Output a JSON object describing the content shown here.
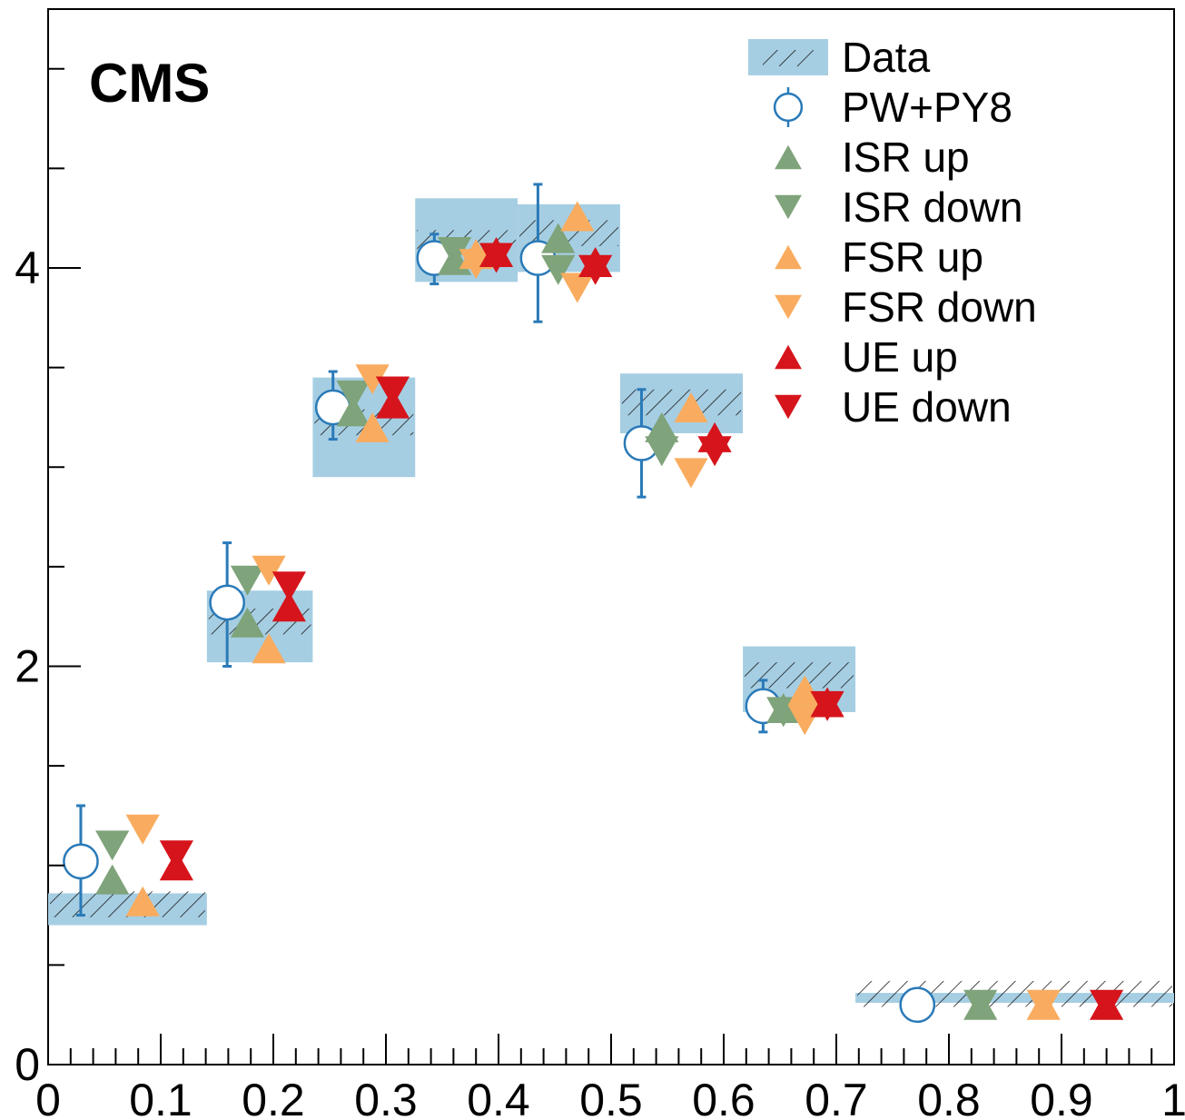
{
  "chart_data": {
    "type": "scatter",
    "title": "",
    "xlabel": "",
    "ylabel": "",
    "xlim": [
      0,
      1
    ],
    "ylim": [
      0,
      5.3
    ],
    "label": "CMS",
    "x_tick_labels": [
      "0",
      "0.1",
      "0.2",
      "0.3",
      "0.4",
      "0.5",
      "0.6",
      "0.7",
      "0.8",
      "0.9",
      "1"
    ],
    "y_tick_labels": [
      "0",
      "2",
      "4"
    ],
    "bins": [
      [
        0.0,
        0.141
      ],
      [
        0.141,
        0.235
      ],
      [
        0.235,
        0.326
      ],
      [
        0.326,
        0.417
      ],
      [
        0.417,
        0.508
      ],
      [
        0.508,
        0.617
      ],
      [
        0.617,
        0.717
      ],
      [
        0.717,
        1.0
      ]
    ],
    "data": {
      "name": "Data",
      "values": [
        0.78,
        2.2,
        3.2,
        4.1,
        4.15,
        3.3,
        1.93,
        0.33
      ],
      "band_low": [
        0.7,
        2.02,
        2.95,
        3.93,
        3.98,
        3.17,
        1.77,
        0.31
      ],
      "band_high": [
        0.86,
        2.38,
        3.45,
        4.35,
        4.32,
        3.47,
        2.1,
        0.36
      ]
    },
    "series": [
      {
        "name": "PW+PY8",
        "color": "#2a7ab8",
        "marker": "open-circle",
        "x": [
          0.029,
          0.159,
          0.253,
          0.343,
          0.435,
          0.527,
          0.635,
          0.772
        ],
        "values": [
          1.02,
          2.32,
          3.3,
          4.05,
          4.05,
          3.12,
          1.8,
          0.3
        ],
        "err_low": [
          0.27,
          0.32,
          0.16,
          0.13,
          0.32,
          0.27,
          0.13,
          0.02
        ],
        "err_high": [
          0.28,
          0.3,
          0.18,
          0.12,
          0.37,
          0.27,
          0.13,
          0.02
        ]
      },
      {
        "name": "ISR up",
        "color": "#7fa37a",
        "marker": "triangle-up",
        "x": [
          0.057,
          0.177,
          0.271,
          0.361,
          0.453,
          0.545,
          0.653,
          0.828
        ],
        "values": [
          0.93,
          2.22,
          3.28,
          4.04,
          4.15,
          3.2,
          1.79,
          0.3
        ]
      },
      {
        "name": "ISR down",
        "color": "#7fa37a",
        "marker": "triangle-down",
        "x": [
          0.057,
          0.177,
          0.271,
          0.361,
          0.453,
          0.545,
          0.653,
          0.828
        ],
        "values": [
          1.1,
          2.43,
          3.36,
          4.08,
          3.99,
          3.08,
          1.77,
          0.3
        ]
      },
      {
        "name": "FSR up",
        "color": "#f9ac5f",
        "marker": "triangle-up",
        "x": [
          0.084,
          0.196,
          0.288,
          0.38,
          0.47,
          0.571,
          0.672,
          0.884
        ],
        "values": [
          0.82,
          2.09,
          3.2,
          4.07,
          4.26,
          3.3,
          1.88,
          0.3
        ]
      },
      {
        "name": "FSR down",
        "color": "#f9ac5f",
        "marker": "triangle-down",
        "x": [
          0.084,
          0.196,
          0.288,
          0.38,
          0.47,
          0.571,
          0.672,
          0.884
        ],
        "values": [
          1.18,
          2.48,
          3.44,
          4.02,
          3.9,
          2.97,
          1.73,
          0.3
        ]
      },
      {
        "name": "UE up",
        "color": "#d6141b",
        "marker": "triangle-up",
        "x": [
          0.114,
          0.214,
          0.306,
          0.398,
          0.486,
          0.592,
          0.692,
          0.94
        ],
        "values": [
          1.0,
          2.3,
          3.32,
          4.08,
          4.03,
          3.15,
          1.82,
          0.3
        ]
      },
      {
        "name": "UE down",
        "color": "#d6141b",
        "marker": "triangle-down",
        "x": [
          0.114,
          0.214,
          0.306,
          0.398,
          0.486,
          0.592,
          0.692,
          0.94
        ],
        "values": [
          1.05,
          2.4,
          3.38,
          4.05,
          3.99,
          3.08,
          1.8,
          0.3
        ]
      }
    ],
    "legend_position": "top-right",
    "grid": false
  }
}
